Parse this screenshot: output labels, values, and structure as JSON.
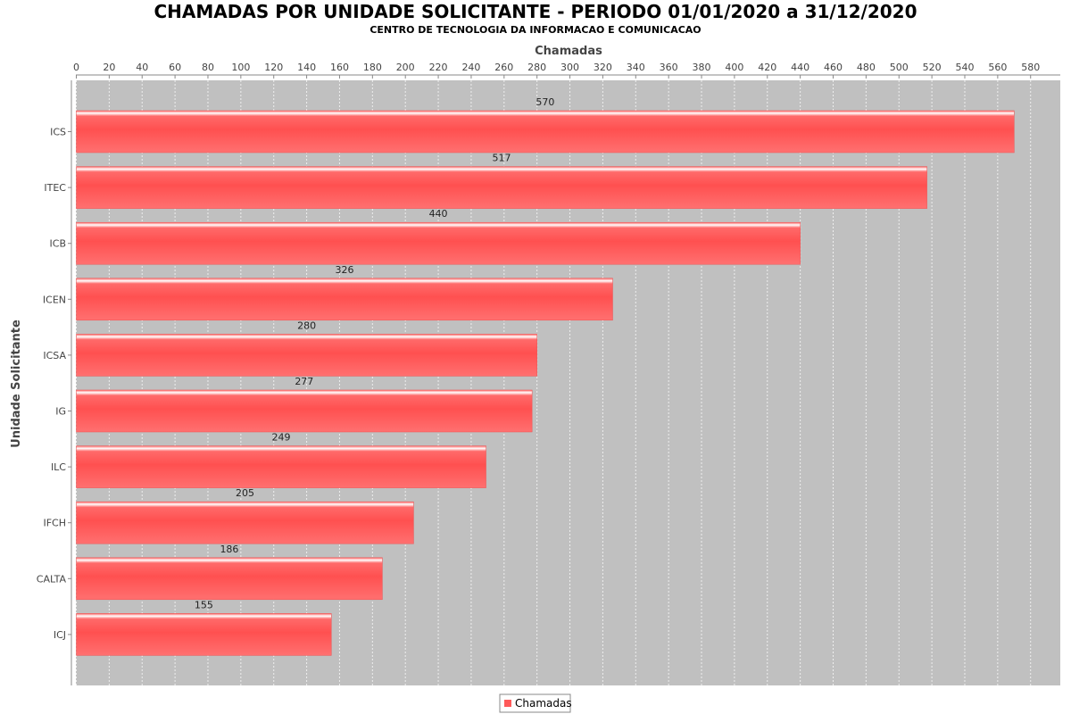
{
  "chart_data": {
    "type": "bar",
    "orientation": "horizontal",
    "title": "CHAMADAS POR UNIDADE SOLICITANTE - PERIODO 01/01/2020 a 31/12/2020",
    "subtitle": "CENTRO DE TECNOLOGIA DA INFORMACAO E COMUNICACAO",
    "xlabel": "Chamadas",
    "ylabel": "Unidade Solicitante",
    "xlim": [
      0,
      598.5
    ],
    "x_ticks": [
      0,
      20,
      40,
      60,
      80,
      100,
      120,
      140,
      160,
      180,
      200,
      220,
      240,
      260,
      280,
      300,
      320,
      340,
      360,
      380,
      400,
      420,
      440,
      460,
      480,
      500,
      520,
      540,
      560,
      580
    ],
    "x_axis_position": "top",
    "categories": [
      "ICS",
      "ITEC",
      "ICB",
      "ICEN",
      "ICSA",
      "IG",
      "ILC",
      "IFCH",
      "CALTA",
      "ICJ"
    ],
    "series": [
      {
        "name": "Chamadas",
        "values": [
          570,
          517,
          440,
          326,
          280,
          277,
          249,
          205,
          186,
          155
        ]
      }
    ],
    "colors": {
      "bar": "#ff5a5a",
      "bar_highlight": "#ffffff",
      "plot_background": "#c0c0c0",
      "gridline": "#eeeeee"
    },
    "grid": true,
    "legend": "bottom-center"
  }
}
